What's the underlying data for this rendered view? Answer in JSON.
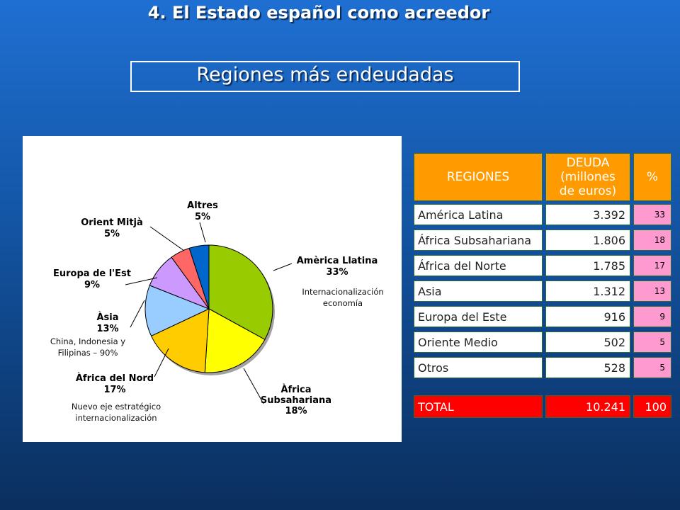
{
  "header": {
    "title": "4. El Estado español como acreedor",
    "subtitle": "Regiones más endeudadas"
  },
  "colors": {
    "background": "#1457a8",
    "table_header": "#ff9a00",
    "table_pct": "#ff9ad0",
    "table_total": "#ff0000"
  },
  "chart_data": {
    "type": "pie",
    "slices": [
      {
        "name": "Amèrica Llatina",
        "value": 33,
        "label": "33%",
        "color": "#99cc00"
      },
      {
        "name": "Àfrica Subsahariana",
        "value": 18,
        "label": "18%",
        "color": "#ffff00"
      },
      {
        "name": "Àfrica del Nord",
        "value": 17,
        "label": "17%",
        "color": "#ffcc00"
      },
      {
        "name": "Àsia",
        "value": 13,
        "label": "13%",
        "color": "#99ccff"
      },
      {
        "name": "Europa de l'Est",
        "value": 9,
        "label": "9%",
        "color": "#cc99ff"
      },
      {
        "name": "Orient Mitjà",
        "value": 5,
        "label": "5%",
        "color": "#ff6666"
      },
      {
        "name": "Altres",
        "value": 5,
        "label": "5%",
        "color": "#0066cc"
      }
    ],
    "label_lines": {
      "america": [
        "Amèrica Llatina",
        "33%"
      ],
      "subsahariana": [
        "Àfrica",
        "Subsahariana",
        "18%"
      ],
      "nord": [
        "Àfrica del Nord",
        "17%"
      ],
      "asia": [
        "Àsia",
        "13%"
      ],
      "europa": [
        "Europa de l'Est",
        "9%"
      ],
      "orient": [
        "Orient Mitjà",
        "5%"
      ],
      "altres": [
        "Altres",
        "5%"
      ]
    },
    "notes": {
      "internacionalizacion": [
        "Internacionalización",
        "economía"
      ],
      "china": [
        "China, Indonesia y",
        "Filipinas – 90%"
      ],
      "nuevo_eje": [
        "Nuevo eje estratégico",
        "internacionalización"
      ]
    }
  },
  "table": {
    "headers": {
      "regiones": "REGIONES",
      "deuda": [
        "DEUDA",
        "(millones",
        "de euros)"
      ],
      "pct": "%"
    },
    "rows": [
      {
        "region": "América Latina",
        "deuda": "3.392",
        "pct": "33"
      },
      {
        "region": "África Subsahariana",
        "deuda": "1.806",
        "pct": "18"
      },
      {
        "region": "África del Norte",
        "deuda": "1.785",
        "pct": "17"
      },
      {
        "region": "Asia",
        "deuda": "1.312",
        "pct": "13"
      },
      {
        "region": "Europa del Este",
        "deuda": "916",
        "pct": "9"
      },
      {
        "region": "Oriente Medio",
        "deuda": "502",
        "pct": "5"
      },
      {
        "region": "Otros",
        "deuda": "528",
        "pct": "5"
      }
    ],
    "total": {
      "label": "TOTAL",
      "deuda": "10.241",
      "pct": "100"
    }
  }
}
